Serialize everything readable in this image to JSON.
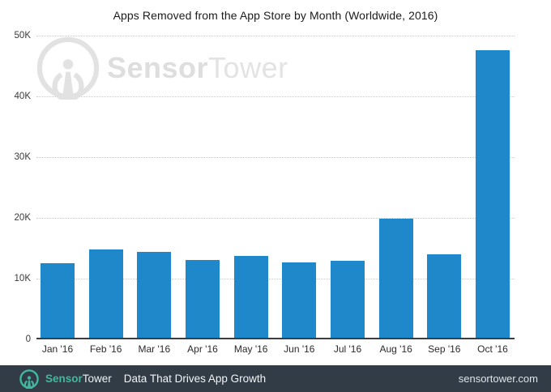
{
  "title": "Apps Removed from the App Store by Month (Worldwide, 2016)",
  "watermark": {
    "icon": "sensortower-antenna-icon",
    "brand_bold": "Sensor",
    "brand_light": "Tower",
    "color": "#dedede"
  },
  "chart_data": {
    "type": "bar",
    "title": "Apps Removed from the App Store by Month (Worldwide, 2016)",
    "categories": [
      "Jan '16",
      "Feb '16",
      "Mar '16",
      "Apr '16",
      "May '16",
      "Jun '16",
      "Jul '16",
      "Aug '16",
      "Sep '16",
      "Oct '16"
    ],
    "values": [
      12200,
      14500,
      14200,
      12800,
      13500,
      12400,
      12600,
      19600,
      13700,
      47300
    ],
    "xlabel": "",
    "ylabel": "",
    "ylim": [
      0,
      50000
    ],
    "y_ticks": [
      "0",
      "10K",
      "20K",
      "30K",
      "40K",
      "50K"
    ],
    "grid": "horizontal-dotted",
    "legend": "none",
    "bar_color": "#1f88ca"
  },
  "footer": {
    "icon": "sensortower-logo-icon",
    "brand_bold": "Sensor",
    "brand_light": "Tower",
    "tagline": "Data That Drives App Growth",
    "website": "sensortower.com",
    "background_color": "#323c46",
    "accent_color": "#41b79f"
  }
}
